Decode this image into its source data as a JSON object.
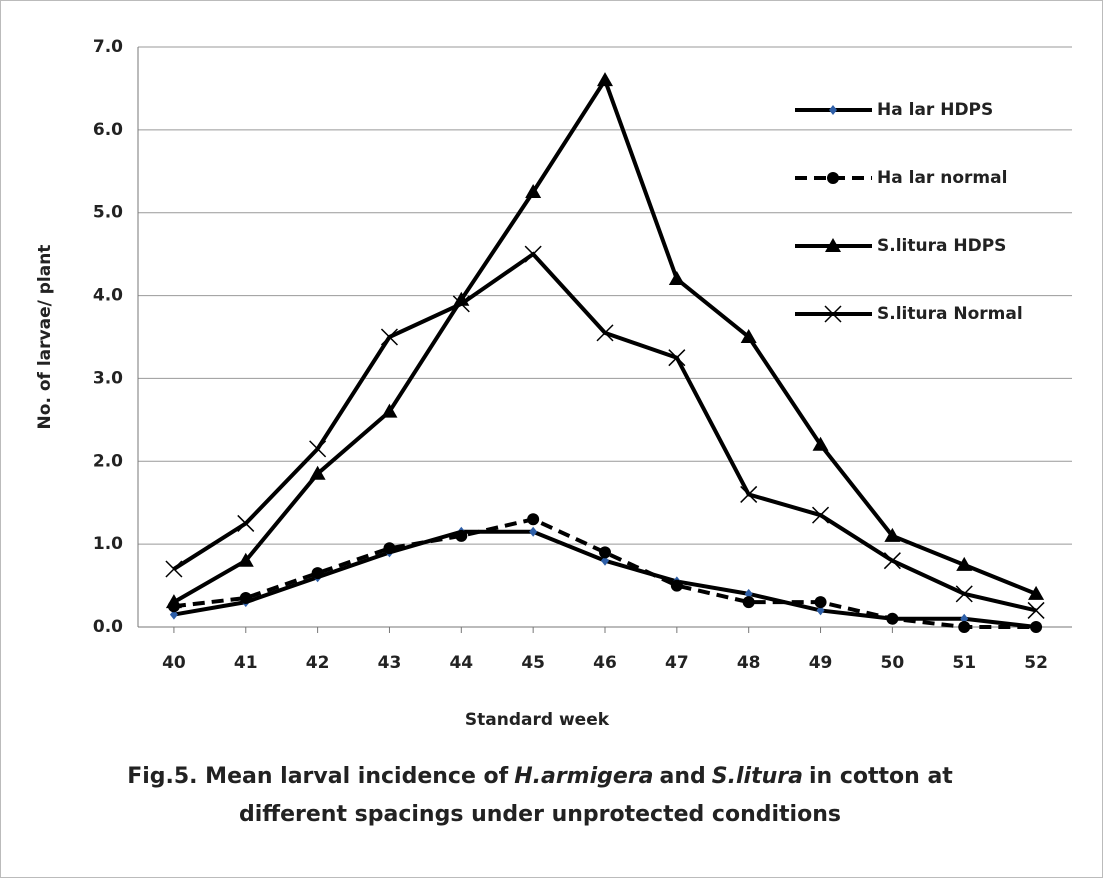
{
  "chart_data": {
    "type": "line",
    "x_label": "Standard week",
    "y_label": "No. of larvae/ plant",
    "caption": {
      "line1": [
        "Fig.5. Mean larval incidence of",
        "H.armigera",
        "and",
        "S.litura",
        "in cotton at"
      ],
      "line2": "different spacings under unprotected conditions"
    },
    "categories": [
      40,
      41,
      42,
      43,
      44,
      45,
      46,
      47,
      48,
      49,
      50,
      51,
      52
    ],
    "ylim": [
      0,
      7
    ],
    "yticks": [
      {
        "value": 0,
        "label": "0.0"
      },
      {
        "value": 1,
        "label": "1.0"
      },
      {
        "value": 2,
        "label": "2.0"
      },
      {
        "value": 3,
        "label": "3.0"
      },
      {
        "value": 4,
        "label": "4.0"
      },
      {
        "value": 5,
        "label": "5.0"
      },
      {
        "value": 6,
        "label": "6.0"
      },
      {
        "value": 7,
        "label": "7.0"
      }
    ],
    "grid": true,
    "legend": "upper right",
    "series": [
      {
        "name": "Ha lar HDPS",
        "color": "#000000",
        "marker": "diamond",
        "marker_color": "#2e5fa8",
        "dash": false,
        "values": [
          0.15,
          0.3,
          0.6,
          0.9,
          1.15,
          1.15,
          0.8,
          0.55,
          0.4,
          0.2,
          0.1,
          0.1,
          0.0
        ]
      },
      {
        "name": "Ha lar normal",
        "color": "#000000",
        "marker": "circle",
        "marker_color": "#000000",
        "dash": true,
        "values": [
          0.25,
          0.35,
          0.65,
          0.95,
          1.1,
          1.3,
          0.9,
          0.5,
          0.3,
          0.3,
          0.1,
          0.0,
          0.0
        ]
      },
      {
        "name": "S.litura HDPS",
        "color": "#000000",
        "marker": "triangle",
        "marker_color": "#000000",
        "dash": false,
        "values": [
          0.3,
          0.8,
          1.85,
          2.6,
          3.95,
          5.25,
          6.6,
          4.2,
          3.5,
          2.2,
          1.1,
          0.75,
          0.4
        ]
      },
      {
        "name": "S.litura Normal",
        "color": "#000000",
        "marker": "x",
        "marker_color": "#000000",
        "dash": false,
        "values": [
          0.7,
          1.25,
          2.15,
          3.5,
          3.9,
          4.5,
          3.55,
          3.25,
          1.6,
          1.35,
          0.8,
          0.4,
          0.2
        ]
      }
    ]
  }
}
